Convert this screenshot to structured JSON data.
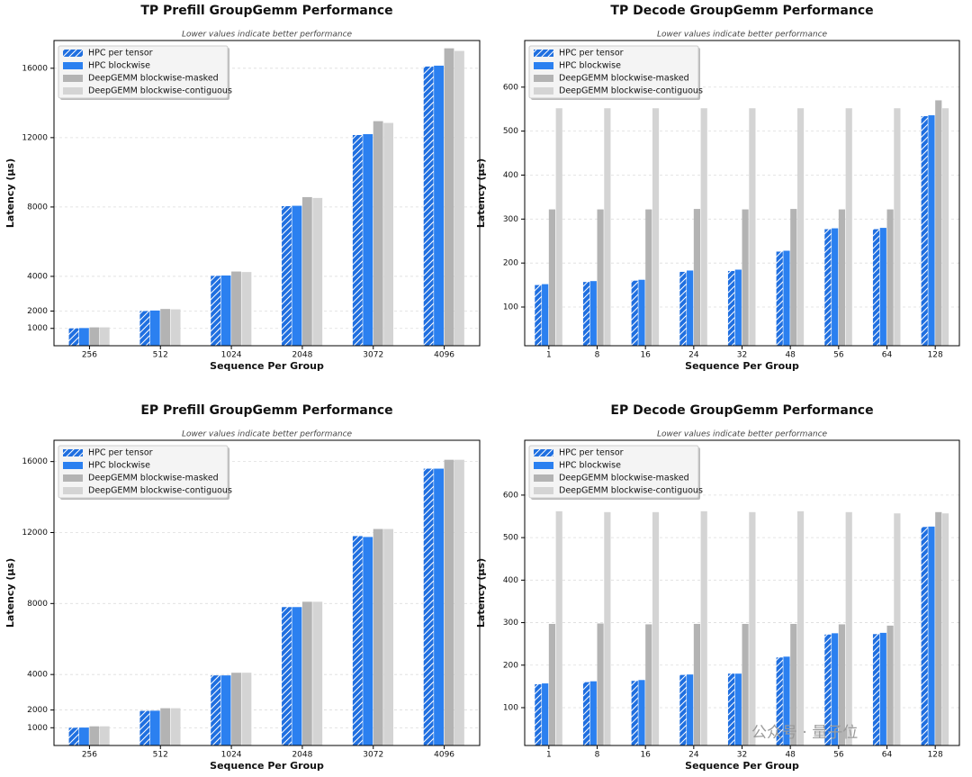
{
  "chart_data": [
    {
      "type": "bar",
      "title": "TP Prefill GroupGemm Performance",
      "subtitle": "Lower values indicate better performance",
      "x_label": "Sequence Per Group",
      "y_label": "Latency (μs)",
      "categories": [
        "256",
        "512",
        "1024",
        "2048",
        "3072",
        "4096"
      ],
      "series": [
        {
          "name": "HPC per tensor",
          "color": "#1f6fe0",
          "hatch": "/",
          "values": [
            1000,
            2000,
            4030,
            8050,
            12150,
            16100
          ]
        },
        {
          "name": "HPC blockwise",
          "color": "#2b80f0",
          "values": [
            1020,
            2030,
            4050,
            8070,
            12200,
            16150
          ]
        },
        {
          "name": "DeepGEMM blockwise-masked",
          "color": "#b3b3b3",
          "values": [
            1060,
            2120,
            4280,
            8570,
            12950,
            17150
          ]
        },
        {
          "name": "DeepGEMM blockwise-contiguous",
          "color": "#d4d4d4",
          "values": [
            1060,
            2100,
            4250,
            8520,
            12850,
            17000
          ]
        }
      ],
      "ylim": [
        0,
        17600
      ],
      "yticks": [
        1000,
        2000,
        4000,
        8000,
        12000,
        16000
      ],
      "grid": true,
      "legend": "upper left"
    },
    {
      "type": "bar",
      "title": "TP Decode GroupGemm Performance",
      "subtitle": "Lower values indicate better performance",
      "x_label": "Sequence Per Group",
      "y_label": "Latency (μs)",
      "categories": [
        "1",
        "8",
        "16",
        "24",
        "32",
        "48",
        "56",
        "64",
        "128"
      ],
      "series": [
        {
          "name": "HPC per tensor",
          "color": "#1f6fe0",
          "hatch": "/",
          "values": [
            150,
            157,
            160,
            180,
            182,
            226,
            277,
            277,
            534
          ]
        },
        {
          "name": "HPC blockwise",
          "color": "#2b80f0",
          "values": [
            152,
            159,
            162,
            183,
            185,
            228,
            279,
            280,
            536
          ]
        },
        {
          "name": "DeepGEMM blockwise-masked",
          "color": "#b3b3b3",
          "values": [
            322,
            322,
            322,
            323,
            322,
            323,
            322,
            322,
            570
          ]
        },
        {
          "name": "DeepGEMM blockwise-contiguous",
          "color": "#d4d4d4",
          "values": [
            552,
            552,
            552,
            552,
            552,
            552,
            552,
            552,
            552
          ]
        }
      ],
      "ylim": [
        12,
        706
      ],
      "yticks": [
        100,
        200,
        300,
        400,
        500,
        600
      ],
      "grid": true,
      "legend": "upper left"
    },
    {
      "type": "bar",
      "title": "EP Prefill GroupGemm Performance",
      "subtitle": "Lower values indicate better performance",
      "x_label": "Sequence Per Group",
      "y_label": "Latency (μs)",
      "categories": [
        "256",
        "512",
        "1024",
        "2048",
        "3072",
        "4096"
      ],
      "series": [
        {
          "name": "HPC per tensor",
          "color": "#1f6fe0",
          "hatch": "/",
          "values": [
            1000,
            1950,
            3950,
            7800,
            11800,
            15600
          ]
        },
        {
          "name": "HPC blockwise",
          "color": "#2b80f0",
          "values": [
            1010,
            1960,
            3950,
            7800,
            11750,
            15600
          ]
        },
        {
          "name": "DeepGEMM blockwise-masked",
          "color": "#b3b3b3",
          "values": [
            1080,
            2100,
            4100,
            8100,
            12200,
            16100
          ]
        },
        {
          "name": "DeepGEMM blockwise-contiguous",
          "color": "#d4d4d4",
          "values": [
            1080,
            2100,
            4100,
            8100,
            12200,
            16100
          ]
        }
      ],
      "ylim": [
        0,
        17200
      ],
      "yticks": [
        1000,
        2000,
        4000,
        8000,
        12000,
        16000
      ],
      "grid": true,
      "legend": "upper left"
    },
    {
      "type": "bar",
      "title": "EP Decode GroupGemm Performance",
      "subtitle": "Lower values indicate better performance",
      "x_label": "Sequence Per Group",
      "y_label": "Latency (μs)",
      "categories": [
        "1",
        "8",
        "16",
        "24",
        "32",
        "48",
        "56",
        "64",
        "128"
      ],
      "series": [
        {
          "name": "HPC per tensor",
          "color": "#1f6fe0",
          "hatch": "/",
          "values": [
            155,
            160,
            163,
            177,
            180,
            218,
            272,
            273,
            525
          ]
        },
        {
          "name": "HPC blockwise",
          "color": "#2b80f0",
          "values": [
            157,
            162,
            165,
            178,
            180,
            220,
            275,
            276,
            526
          ]
        },
        {
          "name": "DeepGEMM blockwise-masked",
          "color": "#b3b3b3",
          "values": [
            297,
            298,
            296,
            297,
            297,
            297,
            296,
            293,
            560
          ]
        },
        {
          "name": "DeepGEMM blockwise-contiguous",
          "color": "#d4d4d4",
          "values": [
            562,
            560,
            560,
            562,
            560,
            562,
            560,
            557,
            557
          ]
        }
      ],
      "ylim": [
        11,
        729
      ],
      "yticks": [
        100,
        200,
        300,
        400,
        500,
        600
      ],
      "grid": true,
      "legend": "upper left"
    }
  ],
  "watermark": "公众号 · 量子位"
}
